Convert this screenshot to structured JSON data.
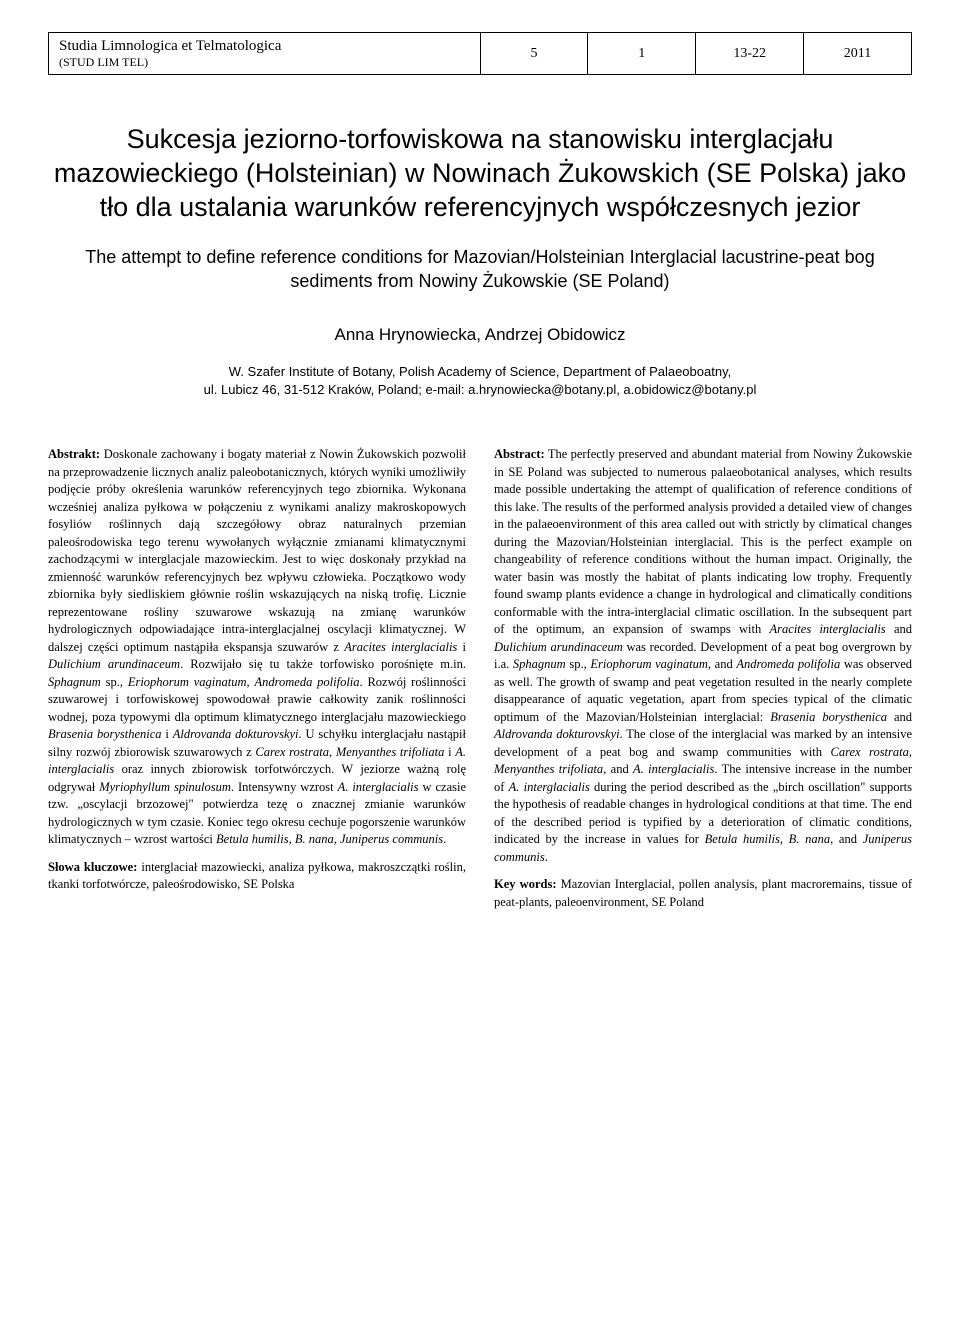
{
  "header": {
    "journal_name": "Studia Limnologica et Telmatologica",
    "journal_abbr": "(STUD LIM TEL)",
    "volume": "5",
    "issue": "1",
    "pages": "13-22",
    "year": "2011"
  },
  "article": {
    "title_pl": "Sukcesja jeziorno-torfowiskowa na stanowisku interglacjału mazowieckiego (Holsteinian) w Nowinach Żukowskich (SE Polska) jako tło dla ustalania warunków referencyjnych współczesnych jezior",
    "title_en": "The attempt to define reference conditions for Mazovian/Holsteinian Interglacial lacustrine-peat bog sediments from Nowiny Żukowskie (SE Poland)",
    "authors": "Anna Hrynowiecka, Andrzej Obidowicz",
    "affiliation_line1": "W. Szafer Institute of Botany, Polish Academy of Science, Department of Palaeoboatny,",
    "affiliation_line2": "ul. Lubicz 46, 31-512 Kraków, Poland; e-mail: a.hrynowiecka@botany.pl, a.obidowicz@botany.pl"
  },
  "abstract_pl": {
    "label": "Abstrakt:",
    "text": "Doskonale zachowany i bogaty materiał z Nowin Żukowskich pozwolił na przeprowadzenie licznych analiz paleobotanicznych, których wyniki umożliwiły podjęcie próby określenia warunków referencyjnych tego zbiornika. Wykonana wcześniej analiza pyłkowa w połączeniu z wynikami analizy makroskopowych fosyliów roślinnych dają szczegółowy obraz naturalnych przemian paleośrodowiska tego terenu wywołanych wyłącznie zmianami klimatycznymi zachodzącymi w interglacjale mazowieckim. Jest to więc doskonały przykład na zmienność warunków referencyjnych bez wpływu człowieka. Początkowo wody zbiornika były siedliskiem głównie roślin wskazujących na niską trofię. Licznie reprezentowane rośliny szuwarowe wskazują na zmianę warunków hydrologicznych odpowiadające intra-interglacjalnej oscylacji klimatycznej. W dalszej części optimum nastąpiła ekspansja szuwarów z",
    "species1": "Aracites interglacialis",
    "text_and": "i",
    "species2": "Dulichium arundinaceum",
    "text2": ". Rozwijało się tu także torfowisko porośnięte m.in.",
    "species3": "Sphagnum",
    "sp": "sp.,",
    "species4": "Eriophorum vaginatum",
    "comma": ",",
    "species5": "Andromeda polifolia",
    "text3": ". Rozwój roślinności szuwarowej i torfowiskowej spowodował prawie całkowity zanik roślinności wodnej, poza typowymi dla optimum klimatycznego interglacjału mazowieckiego",
    "species6": "Brasenia borysthenica",
    "text4": "i",
    "species7": "Aldrovanda dokturovskyi",
    "text5": ". U schyłku interglacjału nastąpił silny rozwój zbiorowisk szuwarowych z",
    "species8": "Carex rostrata",
    "text6": ",",
    "species9": "Menyanthes trifoliata",
    "text7": "i",
    "species10": "A. interglacialis",
    "text8": "oraz innych zbiorowisk torfotwórczych. W jeziorze ważną rolę odgrywał",
    "species11": "Myriophyllum spinulosum",
    "text9": ". Intensywny wzrost",
    "species12": "A. interglacialis",
    "text10": "w czasie tzw. „oscylacji brzozowej\" potwierdza tezę o znacznej zmianie warunków hydrologicznych w tym czasie. Koniec tego okresu cechuje pogorszenie warunków klimatycznych – wzrost wartości",
    "species13": "Betula humilis",
    "text11": ",",
    "species14": "B. nana",
    "text12": ",",
    "species15": "Juniperus communis",
    "text13": ".",
    "keywords_label": "Słowa kluczowe:",
    "keywords": "interglaciał mazowiecki, analiza pyłkowa, makroszczątki roślin, tkanki torfotwórcze, paleośrodowisko, SE Polska"
  },
  "abstract_en": {
    "label": "Abstract:",
    "text": "The perfectly preserved and abundant material from Nowiny Żukowskie in SE Poland was subjected to numerous palaeobotanical analyses, which results made possible undertaking the attempt of qualification of reference conditions of this lake. The results of the performed analysis provided a detailed view of changes in the palaeoenvironment of this area called out with strictly by climatical changes during the Mazovian/Holsteinian interglacial. This is the perfect example on changeability of reference conditions without the human impact. Originally, the water basin was mostly the habitat of plants indicating low trophy. Frequently found swamp plants evidence a change in hydrological and climatically conditions conformable with the intra-interglacial climatic oscillation. In the subsequent part of the optimum, an expansion of swamps with",
    "species1": "Aracites interglacialis",
    "text_and": "and",
    "species2": "Dulichium arundinaceum",
    "text2": "was recorded. Development of a peat bog overgrown by i.a.",
    "species3": "Sphagnum",
    "sp": "sp.,",
    "species4": "Eriophorum vaginatum",
    "comma": ", and",
    "species5": "Andromeda polifolia",
    "text3": "was observed as well. The growth of swamp and peat vegetation resulted in the nearly complete disappearance of aquatic vegetation, apart from species typical of the climatic optimum of the Mazovian/Holsteinian interglacial:",
    "species6": "Brasenia borysthenica",
    "text4": "and",
    "species7": "Aldrovanda dokturovskyi",
    "text5": ". The close of the interglacial was marked by an intensive development of a peat bog and swamp communities with",
    "species8": "Carex rostrata",
    "text6": ",",
    "species9": "Menyanthes trifoliata",
    "text7": ", and",
    "species10": "A. interglacialis",
    "text8": ". The intensive increase in the number of",
    "species11": "A. interglacialis",
    "text9": "during the period described as the „birch oscillation\" supports the hypothesis of readable changes in hydrological conditions at that time. The end of the described period is typified by a deterioration of climatic conditions, indicated by the increase in values for",
    "species12": "Betula humilis",
    "text10": ",",
    "species13": "B. nana",
    "text11": ", and",
    "species14": "Juniperus communis",
    "text12": ".",
    "keywords_label": "Key words:",
    "keywords": "Mazovian Interglacial, pollen analysis, plant macroremains, tissue of peat-plants, paleoenvironment, SE Poland"
  }
}
